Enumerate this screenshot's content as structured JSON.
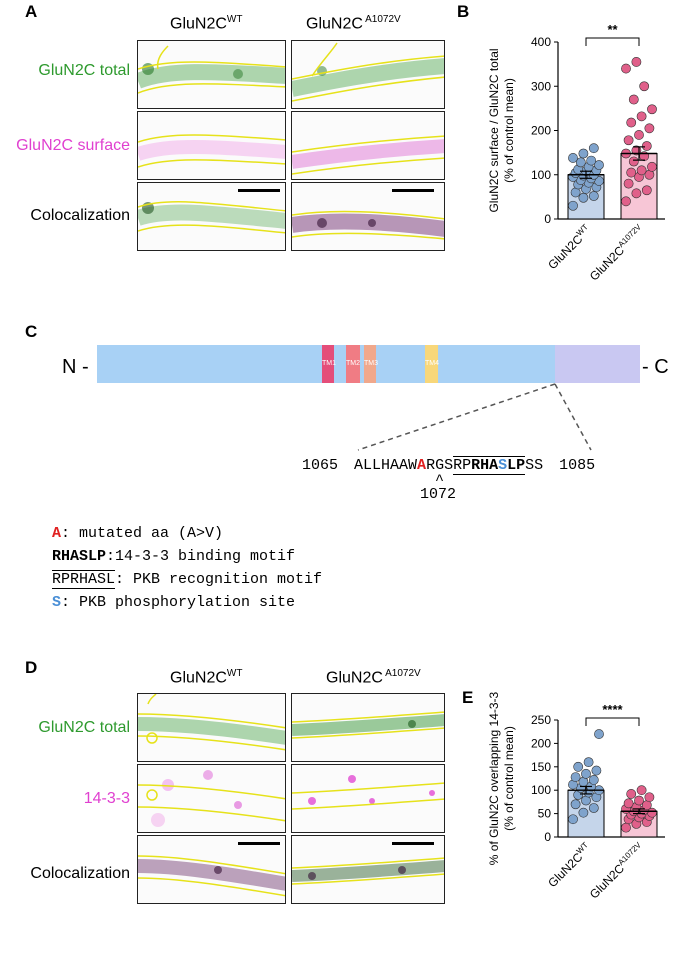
{
  "panel_labels": {
    "a": "A",
    "b": "B",
    "c": "C",
    "d": "D",
    "e": "E"
  },
  "col_headers": {
    "wt": {
      "base": "GluN2C",
      "sup": "WT"
    },
    "mut": {
      "base": "GluN2C",
      "sup": " A1072V"
    }
  },
  "panel_a_rows": {
    "total": "GluN2C total",
    "surface": "GluN2C surface",
    "coloc": "Colocalization"
  },
  "panel_d_rows": {
    "total": "GluN2C total",
    "partner": "14-3-3",
    "coloc": "Colocalization"
  },
  "colors": {
    "green": "#2e9a2e",
    "magenta": "#e040d0",
    "outline": "#e6e21a",
    "bar_wt": "#c5d5ea",
    "bar_mut": "#f7c6d6",
    "dot_wt": "#7fa3cc",
    "dot_mut": "#e0608a",
    "domain": "#a8d1f5",
    "ctail": "#c9c8f2",
    "red": "#e02020",
    "blue": "#4a8fd6"
  },
  "chart_data": [
    {
      "type": "bar",
      "title": "",
      "significance": "**",
      "ylabel_line1": "GluN2C surface / GluN2C total",
      "ylabel_line2": "(% of control mean)",
      "categories": [
        {
          "base": "GluN2C",
          "sup": "WT"
        },
        {
          "base": "GluN2C",
          "sup": "A1072V"
        }
      ],
      "ylim": [
        0,
        400
      ],
      "yticks": [
        "0",
        "100",
        "200",
        "300",
        "400"
      ],
      "means": [
        100,
        148
      ],
      "sem": [
        8,
        15
      ],
      "points": [
        [
          30,
          48,
          52,
          60,
          68,
          72,
          78,
          82,
          86,
          88,
          92,
          95,
          98,
          100,
          104,
          108,
          110,
          112,
          118,
          122,
          128,
          132,
          138,
          148,
          160
        ],
        [
          40,
          58,
          65,
          80,
          95,
          100,
          105,
          110,
          118,
          130,
          142,
          148,
          155,
          165,
          178,
          190,
          205,
          218,
          232,
          248,
          270,
          300,
          340,
          355
        ]
      ]
    },
    {
      "type": "bar",
      "title": "",
      "significance": "****",
      "ylabel_line1": "% of GluN2C overlapping 14-3-3",
      "ylabel_line2": "(% of control mean)",
      "categories": [
        {
          "base": "GluN2C",
          "sup": "WT"
        },
        {
          "base": "GluN2C",
          "sup": "A1072V"
        }
      ],
      "ylim": [
        0,
        250
      ],
      "yticks": [
        "0",
        "50",
        "100",
        "150",
        "200",
        "250"
      ],
      "means": [
        100,
        55
      ],
      "sem": [
        8,
        5
      ],
      "points": [
        [
          38,
          52,
          62,
          70,
          78,
          85,
          90,
          95,
          100,
          105,
          108,
          112,
          118,
          122,
          128,
          135,
          142,
          150,
          160,
          220
        ],
        [
          20,
          28,
          32,
          38,
          42,
          45,
          48,
          50,
          52,
          55,
          58,
          60,
          64,
          68,
          72,
          78,
          85,
          92,
          100
        ]
      ]
    }
  ],
  "schematic": {
    "n_term": "N -",
    "c_term": "- C",
    "tm": [
      "TM1",
      "TM2",
      "TM3",
      "TM4"
    ],
    "seq_start": "1065",
    "seq_end": "1085",
    "seq_pre": "ALLHAAW",
    "seq_mut": "A",
    "seq_mid": "RGS",
    "seq_rp": "RP",
    "seq_rha": "RHA",
    "seq_s": "S",
    "seq_lp": "LP",
    "seq_post": "SS",
    "caret": "^",
    "mut_pos": "1072"
  },
  "legend": [
    {
      "key": "A",
      "text": ": mutated aa (A>V)"
    },
    {
      "key": "RHASLP",
      "text": ":14-3-3 binding motif"
    },
    {
      "key": "RPRHASL",
      "text": ": PKB recognition motif"
    },
    {
      "key": "S",
      "text": ": PKB phosphorylation site"
    }
  ]
}
